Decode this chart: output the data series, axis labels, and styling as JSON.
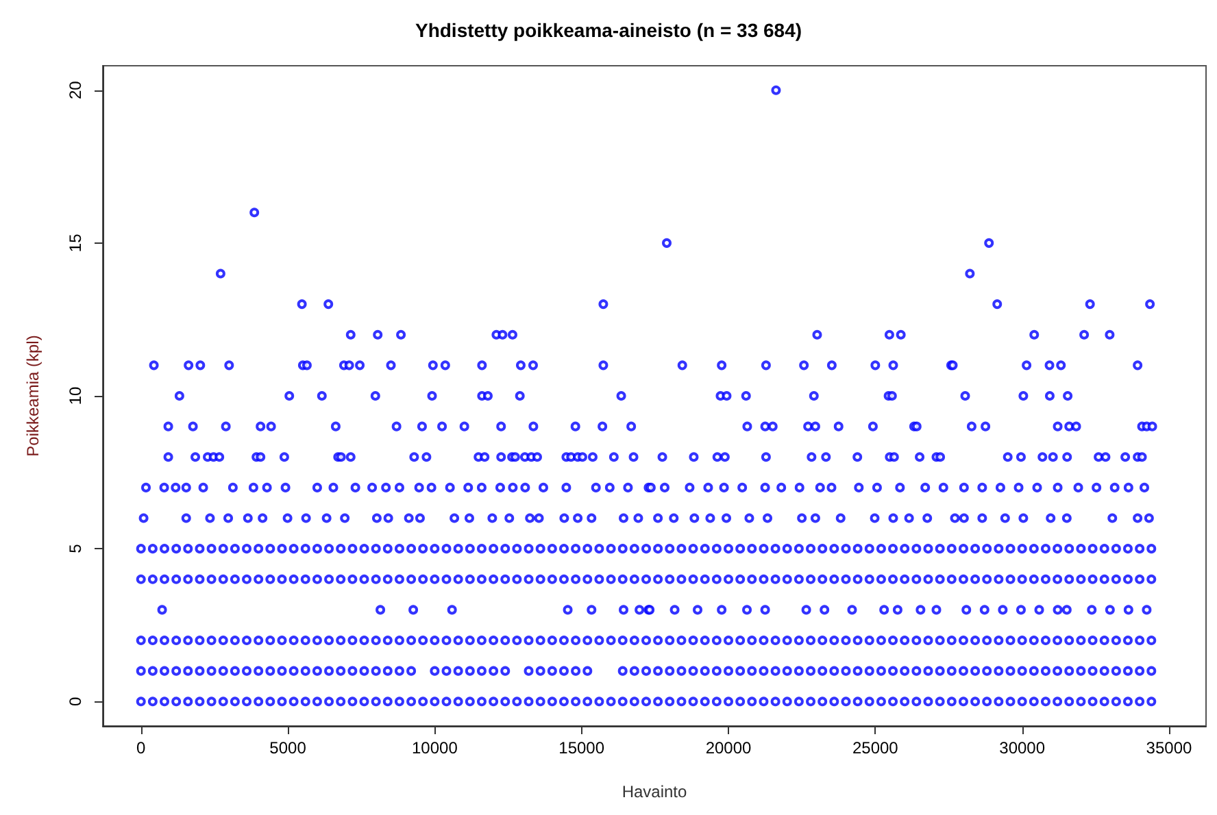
{
  "chart_data": {
    "type": "scatter",
    "title": "Yhdistetty poikkeama-aineisto (n = 33 684)",
    "xlabel": "Havainto",
    "ylabel": "Poikkeamia (kpl)",
    "marker": "circle",
    "grid": false,
    "xlim": [
      -1300,
      36260
    ],
    "xticks": [
      0,
      5000,
      10000,
      15000,
      20000,
      25000,
      30000,
      35000
    ],
    "ylim": [
      -0.8,
      20.8
    ],
    "yticks": [
      0,
      5,
      10,
      15,
      20
    ],
    "x": [
      0,
      400,
      800,
      1200,
      1600,
      2000,
      2400,
      2800,
      3200,
      3600,
      4000,
      4400,
      4800,
      5200,
      5600,
      6000,
      6400,
      6800,
      7200,
      7600,
      8000,
      8400,
      8800,
      9200,
      9600,
      10000,
      10400,
      10800,
      11200,
      11600,
      12000,
      12400,
      12800,
      13200,
      13600,
      14000,
      14400,
      14800,
      15200,
      15600,
      16000,
      16400,
      16800,
      17200,
      17600,
      18000,
      18400,
      18800,
      19200,
      19600,
      20000,
      20400,
      20800,
      21200,
      21600,
      22000,
      22400,
      22800,
      23200,
      23600,
      24000,
      24400,
      24800,
      25200,
      25600,
      26000,
      26400,
      26800,
      27200,
      27600,
      28000,
      28400,
      28800,
      29200,
      29600,
      30000,
      30400,
      30800,
      31200,
      31600,
      32000,
      32400,
      32800,
      33200,
      33600,
      34000,
      34400
    ],
    "series": [
      {
        "color": "#0000ff",
        "values": [
          0,
          0,
          0,
          0,
          0,
          0,
          0,
          0,
          0,
          0,
          0,
          0,
          0,
          0,
          0,
          0,
          0,
          0,
          0,
          0,
          0,
          0,
          0,
          0,
          0,
          0,
          0,
          0,
          0,
          0,
          0,
          0,
          0,
          0,
          0,
          0,
          0,
          0,
          0,
          0,
          0,
          0,
          0,
          0,
          0,
          0,
          0,
          0,
          0,
          0,
          0,
          0,
          0,
          0,
          0,
          0,
          0,
          0,
          0,
          0,
          0,
          0,
          0,
          0,
          0,
          0,
          0,
          0,
          0,
          0,
          0,
          0,
          0,
          0,
          0,
          0,
          0,
          0,
          0,
          0,
          0,
          0,
          0,
          0,
          0,
          0,
          0
        ]
      },
      {
        "color": "#0000ff",
        "values": [
          1,
          1,
          1,
          1,
          1,
          1,
          1,
          1,
          1,
          1,
          1,
          1,
          1,
          1,
          1,
          1,
          1,
          1,
          1,
          1,
          1,
          1,
          1,
          1,
          null,
          1,
          1,
          1,
          1,
          1,
          1,
          1,
          null,
          1,
          1,
          1,
          1,
          1,
          1,
          null,
          null,
          1,
          1,
          1,
          1,
          1,
          1,
          1,
          1,
          1,
          1,
          1,
          1,
          1,
          1,
          1,
          1,
          1,
          1,
          1,
          1,
          1,
          1,
          1,
          1,
          1,
          1,
          1,
          1,
          1,
          1,
          1,
          1,
          1,
          1,
          1,
          1,
          1,
          1,
          1,
          1,
          1,
          1,
          1,
          1,
          1,
          1
        ]
      },
      {
        "color": "#0000ff",
        "values": [
          2,
          2,
          2,
          2,
          2,
          2,
          2,
          2,
          2,
          2,
          2,
          2,
          2,
          2,
          2,
          2,
          2,
          2,
          2,
          2,
          2,
          2,
          2,
          2,
          2,
          2,
          2,
          2,
          2,
          2,
          2,
          2,
          2,
          2,
          2,
          2,
          2,
          2,
          2,
          2,
          2,
          2,
          2,
          2,
          2,
          2,
          2,
          2,
          2,
          2,
          2,
          2,
          2,
          2,
          2,
          2,
          2,
          2,
          2,
          2,
          2,
          2,
          2,
          2,
          2,
          2,
          2,
          2,
          2,
          2,
          2,
          2,
          2,
          2,
          2,
          2,
          2,
          2,
          2,
          2,
          2,
          2,
          2,
          2,
          2,
          2,
          2
        ]
      },
      {
        "color": "#0000ff",
        "values": [
          4,
          4,
          4,
          4,
          4,
          4,
          4,
          4,
          4,
          4,
          4,
          4,
          4,
          4,
          4,
          4,
          4,
          4,
          4,
          4,
          4,
          4,
          4,
          4,
          4,
          4,
          4,
          4,
          4,
          4,
          4,
          4,
          4,
          4,
          4,
          4,
          4,
          4,
          4,
          4,
          4,
          4,
          4,
          4,
          4,
          4,
          4,
          4,
          4,
          4,
          4,
          4,
          4,
          4,
          4,
          4,
          4,
          4,
          4,
          4,
          4,
          4,
          4,
          4,
          4,
          4,
          4,
          4,
          4,
          4,
          4,
          4,
          4,
          4,
          4,
          4,
          4,
          4,
          4,
          4,
          4,
          4,
          4,
          4,
          4,
          4,
          4
        ]
      },
      {
        "color": "#0000ff",
        "values": [
          5,
          5,
          5,
          5,
          5,
          5,
          5,
          5,
          5,
          5,
          5,
          5,
          5,
          5,
          5,
          5,
          5,
          5,
          5,
          5,
          5,
          5,
          5,
          5,
          5,
          5,
          5,
          5,
          5,
          5,
          5,
          5,
          5,
          5,
          5,
          5,
          5,
          5,
          5,
          5,
          5,
          5,
          5,
          5,
          5,
          5,
          5,
          5,
          5,
          5,
          5,
          5,
          5,
          5,
          5,
          5,
          5,
          5,
          5,
          5,
          5,
          5,
          5,
          5,
          5,
          5,
          5,
          5,
          5,
          5,
          5,
          5,
          5,
          5,
          5,
          5,
          5,
          5,
          5,
          5,
          5,
          5,
          5,
          5,
          5,
          5,
          5
        ]
      },
      {
        "color": "#0000ff",
        "x": [
          720,
          8150,
          9270,
          10590,
          14530,
          15340,
          16430,
          16970,
          17280,
          17320,
          18170,
          18950,
          19770,
          20630,
          21250,
          22650,
          23270,
          24210,
          25300,
          25760,
          26540,
          27080,
          28100,
          28720,
          29340,
          29960,
          30580,
          31210,
          31520,
          32370,
          32990,
          33620,
          34240
        ],
        "values": [
          3,
          3,
          3,
          3,
          3,
          3,
          3,
          3,
          3,
          3,
          3,
          3,
          3,
          3,
          3,
          3,
          3,
          3,
          3,
          3,
          3,
          3,
          3,
          3,
          3,
          3,
          3,
          3,
          3,
          3,
          3,
          3,
          3
        ]
      },
      {
        "color": "#0000ff",
        "x": [
          90,
          1540,
          2350,
          2970,
          3640,
          4140,
          4990,
          5620,
          6320,
          6940,
          8030,
          8420,
          9120,
          9500,
          10670,
          11180,
          11960,
          12540,
          13240,
          13550,
          14410,
          14870,
          15340,
          16430,
          16930,
          17600,
          18140,
          18840,
          19380,
          19930,
          20710,
          21330,
          22500,
          22960,
          23820,
          24980,
          25610,
          26150,
          26770,
          27710,
          28020,
          28640,
          29420,
          30040,
          30970,
          31520,
          33070,
          33930,
          34320
        ],
        "values": [
          6,
          6,
          6,
          6,
          6,
          6,
          6,
          6,
          6,
          6,
          6,
          6,
          6,
          6,
          6,
          6,
          6,
          6,
          6,
          6,
          6,
          6,
          6,
          6,
          6,
          6,
          6,
          6,
          6,
          6,
          6,
          6,
          6,
          6,
          6,
          6,
          6,
          6,
          6,
          6,
          6,
          6,
          6,
          6,
          6,
          6,
          6,
          6,
          6
        ]
      },
      {
        "color": "#0000ff",
        "x": [
          170,
          790,
          1180,
          1540,
          2120,
          3130,
          3830,
          4290,
          4920,
          6000,
          6550,
          7300,
          7870,
          8340,
          8800,
          9470,
          9890,
          10520,
          11140,
          11600,
          12230,
          12660,
          13080,
          13700,
          14480,
          15490,
          15960,
          16580,
          17280,
          17360,
          17830,
          18680,
          19310,
          19850,
          20470,
          21250,
          21800,
          22420,
          23120,
          23510,
          24440,
          25060,
          25840,
          26700,
          27320,
          28020,
          28640,
          29260,
          29880,
          30510,
          31210,
          31910,
          32530,
          33150,
          33620,
          34160
        ],
        "values": [
          7,
          7,
          7,
          7,
          7,
          7,
          7,
          7,
          7,
          7,
          7,
          7,
          7,
          7,
          7,
          7,
          7,
          7,
          7,
          7,
          7,
          7,
          7,
          7,
          7,
          7,
          7,
          7,
          7,
          7,
          7,
          7,
          7,
          7,
          7,
          7,
          7,
          7,
          7,
          7,
          7,
          7,
          7,
          7,
          7,
          7,
          7,
          7,
          7,
          7,
          7,
          7,
          7,
          7,
          7,
          7
        ]
      },
      {
        "color": "#0000ff",
        "x": [
          930,
          1850,
          2270,
          2470,
          2670,
          3930,
          4070,
          4880,
          6710,
          6810,
          7140,
          9300,
          9720,
          11490,
          11700,
          12260,
          12630,
          12740,
          13070,
          13290,
          13490,
          14480,
          14640,
          14870,
          15030,
          15380,
          16100,
          16770,
          17750,
          18820,
          19620,
          19880,
          21280,
          22830,
          23320,
          24390,
          25490,
          25640,
          26510,
          27080,
          27210,
          29510,
          29960,
          30690,
          31050,
          31530,
          32600,
          32840,
          33510,
          33930,
          34080
        ],
        "values": [
          8,
          8,
          8,
          8,
          8,
          8,
          8,
          8,
          8,
          8,
          8,
          8,
          8,
          8,
          8,
          8,
          8,
          8,
          8,
          8,
          8,
          8,
          8,
          8,
          8,
          8,
          8,
          8,
          8,
          8,
          8,
          8,
          8,
          8,
          8,
          8,
          8,
          8,
          8,
          8,
          8,
          8,
          8,
          8,
          8,
          8,
          8,
          8,
          8,
          8,
          8
        ]
      },
      {
        "color": "#0000ff",
        "x": [
          930,
          1770,
          2890,
          4070,
          4430,
          6630,
          8700,
          9570,
          10250,
          11010,
          12260,
          13360,
          14790,
          15710,
          16690,
          20640,
          21250,
          21510,
          22710,
          22960,
          23750,
          24920,
          26320,
          26410,
          28280,
          28750,
          31210,
          31600,
          31840,
          34080,
          34240,
          34430
        ],
        "values": [
          9,
          9,
          9,
          9,
          9,
          9,
          9,
          9,
          9,
          9,
          9,
          9,
          9,
          9,
          9,
          9,
          9,
          9,
          9,
          9,
          9,
          9,
          9,
          9,
          9,
          9,
          9,
          9,
          9,
          9,
          9,
          9
        ]
      },
      {
        "color": "#0000ff",
        "x": [
          1310,
          5050,
          6160,
          7980,
          9910,
          11610,
          11810,
          12900,
          16350,
          19730,
          19940,
          20600,
          22910,
          25450,
          25570,
          28060,
          30040,
          30940,
          31550
        ],
        "values": [
          10,
          10,
          10,
          10,
          10,
          10,
          10,
          10,
          10,
          10,
          10,
          10,
          10,
          10,
          10,
          10,
          10,
          10,
          10
        ]
      },
      {
        "color": "#0000ff",
        "x": [
          440,
          1620,
          2020,
          3000,
          5510,
          5650,
          6910,
          7090,
          7450,
          8510,
          9940,
          10360,
          11610,
          12930,
          13350,
          15740,
          18430,
          19770,
          21280,
          22570,
          23520,
          25000,
          25610,
          27580,
          27640,
          30150,
          30930,
          31320,
          33930
        ],
        "values": [
          11,
          11,
          11,
          11,
          11,
          11,
          11,
          11,
          11,
          11,
          11,
          11,
          11,
          11,
          11,
          11,
          11,
          11,
          11,
          11,
          11,
          11,
          11,
          11,
          11,
          11,
          11,
          11,
          11
        ]
      },
      {
        "color": "#0000ff",
        "x": [
          7140,
          8060,
          8850,
          12100,
          12310,
          12650,
          23020,
          25480,
          25870,
          30410,
          32110,
          32980
        ],
        "values": [
          12,
          12,
          12,
          12,
          12,
          12,
          12,
          12,
          12,
          12,
          12,
          12
        ]
      },
      {
        "color": "#0000ff",
        "x": [
          5480,
          6380,
          15740,
          29150,
          32310,
          34350
        ],
        "values": [
          13,
          13,
          13,
          13,
          13,
          13
        ]
      },
      {
        "color": "#0000ff",
        "x": [
          2710,
          28220
        ],
        "values": [
          14,
          14
        ]
      },
      {
        "color": "#0000ff",
        "x": [
          17900,
          28870
        ],
        "values": [
          15,
          15
        ]
      },
      {
        "color": "#0000ff",
        "x": [
          3860
        ],
        "values": [
          16
        ]
      },
      {
        "color": "#0000ff",
        "x": [
          21620
        ],
        "values": [
          20
        ]
      }
    ]
  }
}
